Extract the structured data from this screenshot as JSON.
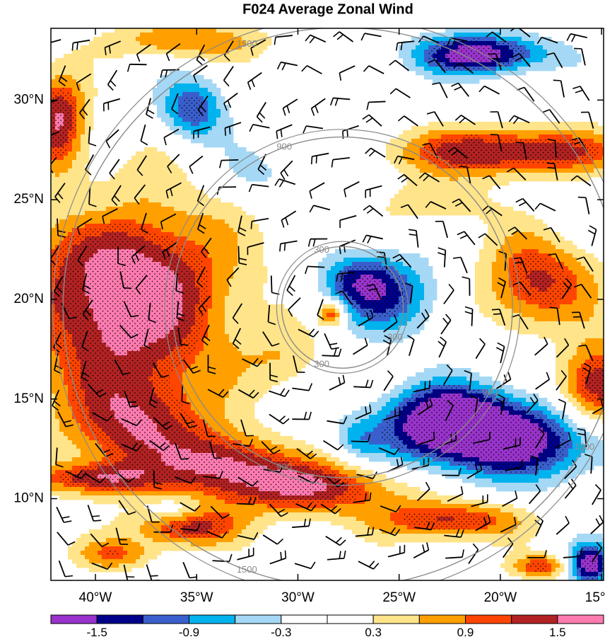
{
  "chart_data": {
    "type": "heatmap",
    "title": "F024 Average Zonal Wind",
    "x_ticks": [
      "40°W",
      "35°W",
      "30°W",
      "25°W",
      "20°W",
      "15°W"
    ],
    "x_tick_values": [
      -40,
      -35,
      -30,
      -25,
      -20,
      -15
    ],
    "y_ticks": [
      "30°N",
      "25°N",
      "20°N",
      "15°N",
      "10°N"
    ],
    "y_tick_values": [
      30,
      25,
      20,
      15,
      10
    ],
    "xlim": [
      -42.2,
      -14.9
    ],
    "ylim": [
      5.9,
      33.6
    ],
    "colorbar": {
      "levels": [
        -1.8,
        -1.5,
        -1.2,
        -0.9,
        -0.6,
        -0.3,
        0,
        0.3,
        0.6,
        0.9,
        1.2,
        1.5,
        1.8
      ],
      "labels": [
        "-1.5",
        "-0.9",
        "-0.3",
        "0.3",
        "0.9",
        "1.5"
      ],
      "colors": [
        "#9933cc",
        "#00008b",
        "#3a5fcd",
        "#00b2ee",
        "#a4d8f5",
        "#ffffff",
        "#ffffff",
        "#ffe48a",
        "#ffa000",
        "#ff4500",
        "#b22222",
        "#ff7bb0"
      ]
    },
    "range_rings": {
      "center": [
        -27.8,
        19.6
      ],
      "values": [
        300,
        900,
        1500
      ],
      "labels": [
        "300",
        "900",
        "1500"
      ],
      "color": "#8a8a8a"
    },
    "stippling": "dots in significant regions",
    "features": [
      {
        "name": "large positive maximum",
        "lon": -38.5,
        "lat": 20.2,
        "value": 1.8
      },
      {
        "name": "positive jet band north",
        "lon": -19.5,
        "lat": 27.4,
        "value": 1.6
      },
      {
        "name": "positive maximum east",
        "lon": -17.8,
        "lat": 20.8,
        "value": 1.6
      },
      {
        "name": "positive band south",
        "lon": -29.5,
        "lat": 10.7,
        "value": 1.6
      },
      {
        "name": "negative core southeast",
        "lon": -20.0,
        "lat": 13.0,
        "value": -1.7
      },
      {
        "name": "negative core north",
        "lon": -21.0,
        "lat": 32.3,
        "value": -1.7
      },
      {
        "name": "negative center",
        "lon": -25.6,
        "lat": 20.4,
        "value": -1.0
      }
    ]
  }
}
